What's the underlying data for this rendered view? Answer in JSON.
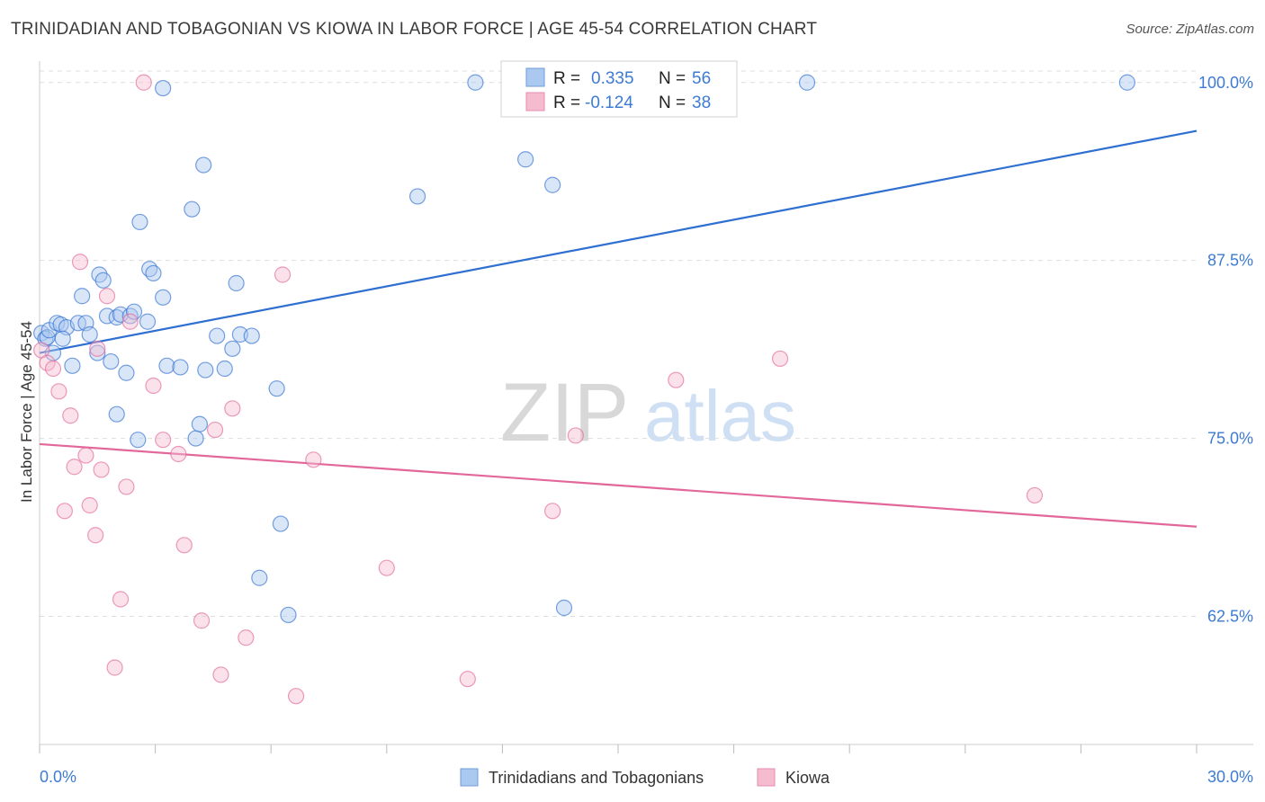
{
  "title": "TRINIDADIAN AND TOBAGONIAN VS KIOWA IN LABOR FORCE | AGE 45-54 CORRELATION CHART",
  "source": "Source: ZipAtlas.com",
  "watermark": {
    "zip": "ZIP",
    "atlas": "atlas"
  },
  "colors": {
    "blue": "#2f6fd1",
    "blue_fill": "#aac8f0",
    "pink": "#e2679a",
    "pink_fill": "#f5bcd0",
    "grid": "#dddddd",
    "axis_label_blue": "#3d7bd3"
  },
  "legend_stats": [
    {
      "r_label": "R =",
      "r_value": "0.335",
      "n_label": "N =",
      "n_value": "56",
      "color_key": "blue"
    },
    {
      "r_label": "R =",
      "r_value": "-0.124",
      "n_label": "N =",
      "n_value": "38",
      "color_key": "pink"
    }
  ],
  "chart_data": {
    "type": "scatter",
    "title": "TRINIDADIAN AND TOBAGONIAN VS KIOWA IN LABOR FORCE | AGE 45-54 CORRELATION CHART",
    "xlabel": "",
    "ylabel": "In Labor Force | Age 45-54",
    "xlim": [
      0,
      30
    ],
    "ylim": [
      53.5,
      101.5
    ],
    "x_tick_labels": [
      "0.0%",
      "30.0%"
    ],
    "y_ticks": [
      62.5,
      75.0,
      87.5,
      100.0
    ],
    "y_tick_labels": [
      "62.5%",
      "75.0%",
      "87.5%",
      "100.0%"
    ],
    "grid": true,
    "legend_position": "bottom",
    "series": [
      {
        "name": "Trinidadians and Tobagonians",
        "color_key": "blue",
        "trend": {
          "x": [
            0.0,
            30.0
          ],
          "y": [
            81.0,
            96.6
          ]
        },
        "points": [
          [
            0.05,
            82.4
          ],
          [
            0.15,
            82.0
          ],
          [
            0.2,
            82.1
          ],
          [
            0.25,
            82.6
          ],
          [
            0.35,
            81.0
          ],
          [
            0.45,
            83.1
          ],
          [
            0.55,
            83.0
          ],
          [
            0.7,
            82.8
          ],
          [
            0.85,
            80.1
          ],
          [
            1.0,
            83.1
          ],
          [
            1.1,
            85.0
          ],
          [
            1.2,
            83.1
          ],
          [
            1.3,
            82.3
          ],
          [
            1.5,
            81.0
          ],
          [
            1.55,
            86.5
          ],
          [
            1.65,
            86.1
          ],
          [
            1.75,
            83.6
          ],
          [
            1.85,
            80.4
          ],
          [
            2.0,
            83.5
          ],
          [
            2.0,
            76.7
          ],
          [
            2.1,
            83.7
          ],
          [
            2.25,
            79.6
          ],
          [
            2.35,
            83.6
          ],
          [
            2.45,
            83.9
          ],
          [
            2.55,
            74.9
          ],
          [
            2.6,
            90.2
          ],
          [
            2.8,
            83.2
          ],
          [
            2.85,
            86.9
          ],
          [
            2.95,
            86.6
          ],
          [
            3.2,
            99.6
          ],
          [
            3.2,
            84.9
          ],
          [
            3.3,
            80.1
          ],
          [
            3.65,
            80.0
          ],
          [
            3.95,
            91.1
          ],
          [
            4.05,
            75.0
          ],
          [
            4.15,
            76.0
          ],
          [
            4.25,
            94.2
          ],
          [
            4.3,
            79.8
          ],
          [
            4.6,
            82.2
          ],
          [
            4.8,
            79.9
          ],
          [
            5.0,
            81.3
          ],
          [
            5.1,
            85.9
          ],
          [
            5.2,
            82.3
          ],
          [
            5.5,
            82.2
          ],
          [
            6.15,
            78.5
          ],
          [
            6.25,
            69.0
          ],
          [
            6.45,
            62.6
          ],
          [
            5.7,
            65.2
          ],
          [
            9.8,
            92.0
          ],
          [
            11.3,
            100.0
          ],
          [
            12.6,
            94.6
          ],
          [
            13.3,
            92.8
          ],
          [
            13.6,
            63.1
          ],
          [
            19.9,
            100.0
          ],
          [
            28.2,
            100.0
          ],
          [
            0.6,
            82.0
          ]
        ]
      },
      {
        "name": "Kiowa",
        "color_key": "pink",
        "trend": {
          "x": [
            0.0,
            30.0
          ],
          "y": [
            74.6,
            68.8
          ]
        },
        "points": [
          [
            0.05,
            81.2
          ],
          [
            0.2,
            80.3
          ],
          [
            0.35,
            79.9
          ],
          [
            0.5,
            78.3
          ],
          [
            0.65,
            69.9
          ],
          [
            0.8,
            76.6
          ],
          [
            0.9,
            73.0
          ],
          [
            1.05,
            87.4
          ],
          [
            1.2,
            73.8
          ],
          [
            1.3,
            70.3
          ],
          [
            1.45,
            68.2
          ],
          [
            1.5,
            81.3
          ],
          [
            1.6,
            72.8
          ],
          [
            1.75,
            85.0
          ],
          [
            1.95,
            58.9
          ],
          [
            2.1,
            63.7
          ],
          [
            2.25,
            71.6
          ],
          [
            2.35,
            83.2
          ],
          [
            2.7,
            100.0
          ],
          [
            2.95,
            78.7
          ],
          [
            3.2,
            74.9
          ],
          [
            3.6,
            73.9
          ],
          [
            3.75,
            67.5
          ],
          [
            4.2,
            62.2
          ],
          [
            4.55,
            75.6
          ],
          [
            4.7,
            58.4
          ],
          [
            5.0,
            77.1
          ],
          [
            5.35,
            61.0
          ],
          [
            6.3,
            86.5
          ],
          [
            6.65,
            56.9
          ],
          [
            7.1,
            73.5
          ],
          [
            9.0,
            65.9
          ],
          [
            11.1,
            58.1
          ],
          [
            13.3,
            69.9
          ],
          [
            13.9,
            75.2
          ],
          [
            16.5,
            79.1
          ],
          [
            19.2,
            80.6
          ],
          [
            25.8,
            71.0
          ]
        ]
      }
    ]
  }
}
